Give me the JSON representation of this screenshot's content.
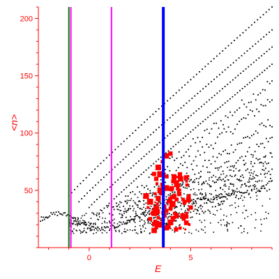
{
  "chart_data": {
    "type": "scatter",
    "title": "",
    "xlabel": "E",
    "ylabel": "<n>",
    "xlim": [
      -2.5,
      9
    ],
    "ylim": [
      0,
      210
    ],
    "x_ticks": [
      0,
      5
    ],
    "y_ticks": [
      50,
      100,
      150,
      200
    ],
    "grid": false,
    "vertical_lines": [
      {
        "x": -1.0,
        "color": "#008000"
      },
      {
        "x": -0.9,
        "color": "#ff00ff"
      },
      {
        "x": 1.1,
        "color": "#ff00ff"
      },
      {
        "x": 3.65,
        "color": "#0000ff"
      }
    ],
    "colors": {
      "axis": "#ff0000",
      "black_series": "#000000",
      "red_series": "#ff0000"
    },
    "series": [
      {
        "color": "#000000",
        "lower_curve": [
          [
            -2.4,
            25
          ],
          [
            -2.0,
            28
          ],
          [
            -1.5,
            30
          ],
          [
            -1.0,
            28
          ],
          [
            -0.5,
            22
          ],
          [
            0.0,
            18
          ],
          [
            0.5,
            16
          ],
          [
            1.0,
            17
          ],
          [
            1.5,
            20
          ],
          [
            2.0,
            24
          ],
          [
            2.5,
            28
          ],
          [
            3.0,
            32
          ],
          [
            4.0,
            36
          ],
          [
            5.0,
            40
          ],
          [
            6.0,
            43
          ],
          [
            7.0,
            46
          ],
          [
            8.0,
            49
          ],
          [
            9.0,
            52
          ]
        ],
        "bands": [
          {
            "x": [
              -1.0,
              9.0
            ],
            "y": [
              45,
              210
            ]
          },
          {
            "x": [
              -0.5,
              9.0
            ],
            "y": [
              40,
              190
            ]
          },
          {
            "x": [
              0.0,
              9.0
            ],
            "y": [
              35,
              175
            ]
          },
          {
            "x": [
              0.5,
              9.0
            ],
            "y": [
              30,
              160
            ]
          },
          {
            "x": [
              1.0,
              9.0
            ],
            "y": [
              28,
              145
            ]
          },
          {
            "x": [
              1.5,
              9.0
            ],
            "y": [
              26,
              130
            ]
          },
          {
            "x": [
              2.0,
              9.0
            ],
            "y": [
              25,
              110
            ]
          },
          {
            "x": [
              2.5,
              9.0
            ],
            "y": [
              24,
              95
            ]
          },
          {
            "x": [
              3.0,
              9.0
            ],
            "y": [
              23,
              80
            ]
          },
          {
            "x": [
              3.5,
              9.0
            ],
            "y": [
              22,
              68
            ]
          },
          {
            "x": [
              4.0,
              9.0
            ],
            "y": [
              22,
              58
            ]
          }
        ]
      },
      {
        "color": "#ff00000",
        "points": [
          [
            3.2,
            15
          ],
          [
            3.3,
            18
          ],
          [
            3.35,
            22
          ],
          [
            3.4,
            26
          ],
          [
            3.2,
            30
          ],
          [
            3.3,
            34
          ],
          [
            3.35,
            38
          ],
          [
            3.4,
            43
          ],
          [
            3.25,
            47
          ],
          [
            3.5,
            50
          ],
          [
            3.6,
            55
          ],
          [
            3.3,
            60
          ],
          [
            3.5,
            64
          ],
          [
            3.4,
            70
          ],
          [
            3.6,
            75
          ],
          [
            3.8,
            80
          ],
          [
            4.0,
            82
          ],
          [
            3.9,
            18
          ],
          [
            4.0,
            22
          ],
          [
            4.1,
            26
          ],
          [
            4.2,
            30
          ],
          [
            4.0,
            34
          ],
          [
            4.1,
            38
          ],
          [
            4.3,
            42
          ],
          [
            4.2,
            46
          ],
          [
            4.4,
            50
          ],
          [
            4.3,
            55
          ],
          [
            4.5,
            60
          ],
          [
            3.0,
            25
          ],
          [
            3.1,
            30
          ],
          [
            2.9,
            35
          ],
          [
            3.0,
            40
          ],
          [
            2.8,
            45
          ],
          [
            4.6,
            28
          ],
          [
            4.8,
            30
          ],
          [
            5.0,
            35
          ],
          [
            4.7,
            40
          ],
          [
            4.9,
            45
          ],
          [
            3.5,
            20
          ],
          [
            3.6,
            24
          ],
          [
            3.7,
            28
          ],
          [
            3.8,
            32
          ],
          [
            3.7,
            36
          ],
          [
            3.9,
            40
          ],
          [
            4.1,
            44
          ],
          [
            3.6,
            48
          ],
          [
            3.8,
            52
          ]
        ]
      }
    ]
  }
}
